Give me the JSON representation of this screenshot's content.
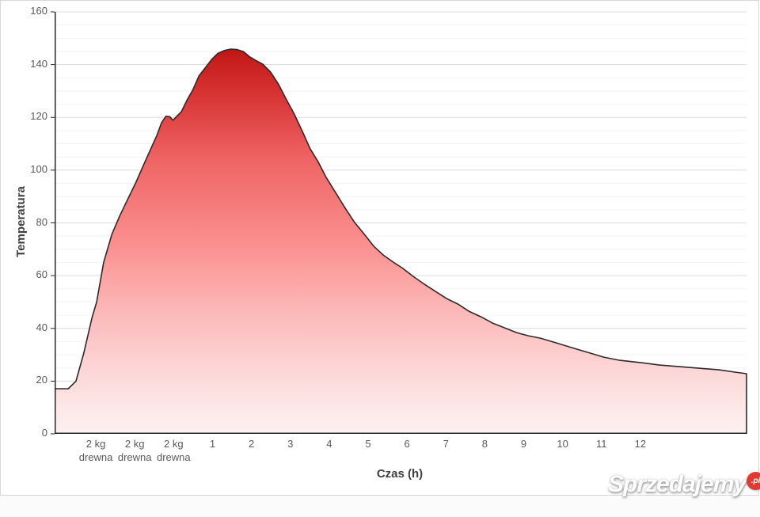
{
  "watermark": {
    "text": "Sprzedajemy",
    "badge": ".pl",
    "badge_color": "#e23a2e",
    "text_color": "#ffffff"
  },
  "chart_data": {
    "type": "area",
    "title": "",
    "xlabel": "Czas (h)",
    "ylabel": "Temperatura",
    "ylim": [
      0,
      160
    ],
    "xlim": [
      -3.08,
      14.71
    ],
    "grid": "horizontal, major every 20 + minor every 5, no vertical gridlines",
    "legend": "none",
    "y_ticks": [
      0,
      20,
      40,
      60,
      80,
      100,
      120,
      140,
      160
    ],
    "y_minor_step": 5,
    "x_ticks": [
      {
        "h": -2,
        "lines": [
          "2 kg",
          "drewna"
        ]
      },
      {
        "h": -1,
        "lines": [
          "2 kg",
          "drewna"
        ]
      },
      {
        "h": 0,
        "lines": [
          "2 kg",
          "drewna"
        ]
      },
      {
        "h": 1,
        "lines": [
          "1"
        ]
      },
      {
        "h": 2,
        "lines": [
          "2"
        ]
      },
      {
        "h": 3,
        "lines": [
          "3"
        ]
      },
      {
        "h": 4,
        "lines": [
          "4"
        ]
      },
      {
        "h": 5,
        "lines": [
          "5"
        ]
      },
      {
        "h": 6,
        "lines": [
          "6"
        ]
      },
      {
        "h": 7,
        "lines": [
          "7"
        ]
      },
      {
        "h": 8,
        "lines": [
          "8"
        ]
      },
      {
        "h": 9,
        "lines": [
          "9"
        ]
      },
      {
        "h": 10,
        "lines": [
          "10"
        ]
      },
      {
        "h": 11,
        "lines": [
          "11"
        ]
      },
      {
        "h": 12,
        "lines": [
          "12"
        ]
      }
    ],
    "series": [
      {
        "name": "Temperatura",
        "line_color": "#2b2b2b",
        "points": [
          [
            -3.08,
            17.1
          ],
          [
            -2.73,
            17.1
          ],
          [
            -2.53,
            20
          ],
          [
            -2.33,
            30.6
          ],
          [
            -2.12,
            44
          ],
          [
            -2.0,
            50
          ],
          [
            -1.82,
            65
          ],
          [
            -1.61,
            75.6
          ],
          [
            -1.41,
            82.5
          ],
          [
            -1.2,
            89
          ],
          [
            -1.0,
            95
          ],
          [
            -0.8,
            101.7
          ],
          [
            -0.59,
            108.6
          ],
          [
            -0.45,
            113.2
          ],
          [
            -0.33,
            118
          ],
          [
            -0.22,
            120.4
          ],
          [
            -0.12,
            120.3
          ],
          [
            -0.04,
            118.9
          ],
          [
            0.06,
            120.4
          ],
          [
            0.18,
            122.2
          ],
          [
            0.33,
            126.7
          ],
          [
            0.47,
            130.3
          ],
          [
            0.63,
            135.7
          ],
          [
            0.8,
            138.9
          ],
          [
            0.96,
            142
          ],
          [
            1.12,
            144.3
          ],
          [
            1.29,
            145.4
          ],
          [
            1.45,
            145.9
          ],
          [
            1.61,
            145.7
          ],
          [
            1.78,
            144.9
          ],
          [
            1.94,
            142.9
          ],
          [
            2.1,
            141.5
          ],
          [
            2.27,
            140.2
          ],
          [
            2.47,
            137.2
          ],
          [
            2.67,
            132.7
          ],
          [
            2.88,
            126.7
          ],
          [
            3.08,
            121.3
          ],
          [
            3.29,
            114.7
          ],
          [
            3.49,
            108.1
          ],
          [
            3.69,
            103.3
          ],
          [
            3.9,
            97.3
          ],
          [
            4.14,
            91.6
          ],
          [
            4.39,
            85.6
          ],
          [
            4.63,
            80.2
          ],
          [
            4.88,
            75.7
          ],
          [
            5.12,
            71.2
          ],
          [
            5.37,
            67.8
          ],
          [
            5.61,
            65.3
          ],
          [
            5.86,
            62.9
          ],
          [
            6.14,
            59.7
          ],
          [
            6.43,
            56.7
          ],
          [
            6.71,
            54
          ],
          [
            7.0,
            51.3
          ],
          [
            7.29,
            49.2
          ],
          [
            7.57,
            46.5
          ],
          [
            7.88,
            44.4
          ],
          [
            8.18,
            42
          ],
          [
            8.49,
            40.2
          ],
          [
            8.8,
            38.4
          ],
          [
            9.1,
            37.2
          ],
          [
            9.41,
            36.3
          ],
          [
            9.82,
            34.5
          ],
          [
            10.22,
            32.7
          ],
          [
            10.63,
            30.9
          ],
          [
            11.04,
            29.1
          ],
          [
            11.45,
            27.9
          ],
          [
            12.0,
            27
          ],
          [
            12.47,
            26.1
          ],
          [
            12.98,
            25.5
          ],
          [
            13.49,
            24.9
          ],
          [
            14.0,
            24.3
          ],
          [
            14.41,
            23.4
          ],
          [
            14.71,
            22.8
          ]
        ]
      }
    ],
    "fill_gradient": [
      {
        "o": 0.0,
        "c": "#a30909"
      },
      {
        "o": 0.09,
        "c": "#c11616"
      },
      {
        "o": 0.2,
        "c": "#d93535"
      },
      {
        "o": 0.35,
        "c": "#ef6464"
      },
      {
        "o": 0.55,
        "c": "#fb8f8f"
      },
      {
        "o": 0.7,
        "c": "#fcb6b6"
      },
      {
        "o": 0.84,
        "c": "#fcd4d4"
      },
      {
        "o": 0.93,
        "c": "#fde6e6"
      },
      {
        "o": 1.0,
        "c": "#fdf1f1"
      }
    ],
    "axis_color": "#262626",
    "major_grid_color": "#dcdcdc",
    "minor_grid_color": "#f2f2f2",
    "tick_label_color": "#595959"
  }
}
